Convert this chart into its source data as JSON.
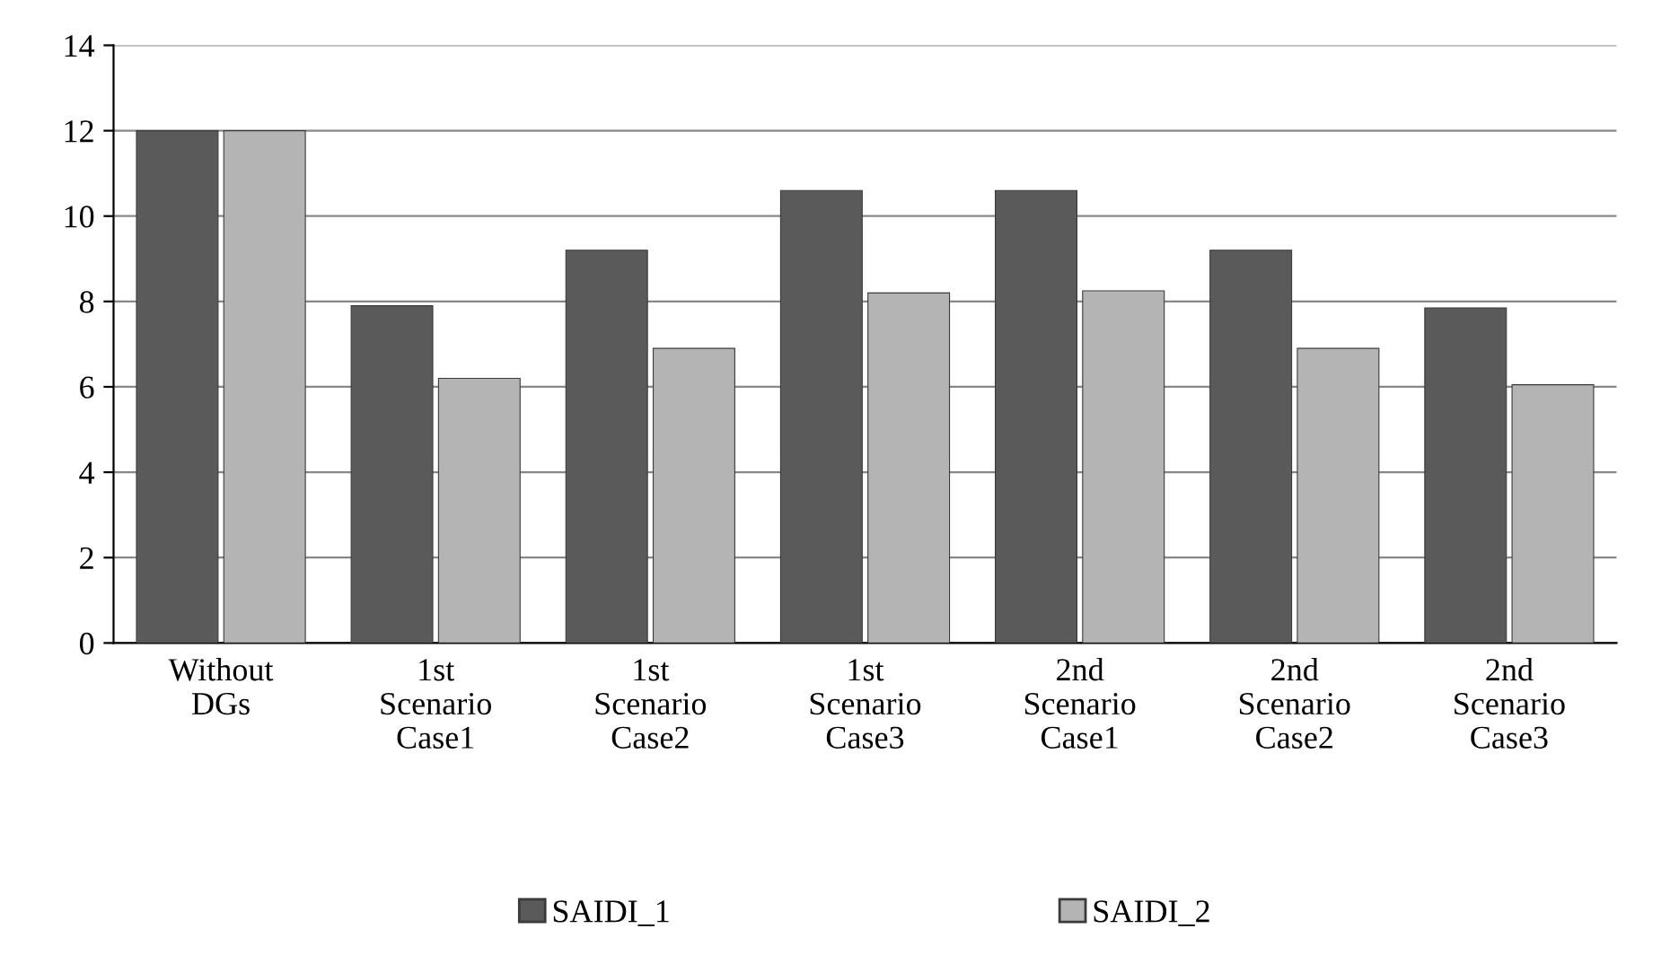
{
  "chart_data": {
    "type": "bar",
    "categories": [
      "Without\nDGs",
      "1st\nScenario\nCase1",
      "1st\nScenario\nCase2",
      "1st\nScenario\nCase3",
      "2nd\nScenario\nCase1",
      "2nd\nScenario\nCase2",
      "2nd\nScenario\nCase3"
    ],
    "series": [
      {
        "name": "SAIDI_1",
        "color": "#5a5a5a",
        "values": [
          12,
          7.9,
          9.2,
          10.6,
          10.6,
          9.2,
          7.85
        ]
      },
      {
        "name": "SAIDI_2",
        "color": "#b4b4b4",
        "values": [
          12,
          6.2,
          6.9,
          8.2,
          8.25,
          6.9,
          6.05
        ]
      }
    ],
    "ylim": [
      0,
      14
    ],
    "yticks": [
      0,
      2,
      4,
      6,
      8,
      10,
      12,
      14
    ],
    "grid": "y",
    "legend": "bottom"
  }
}
